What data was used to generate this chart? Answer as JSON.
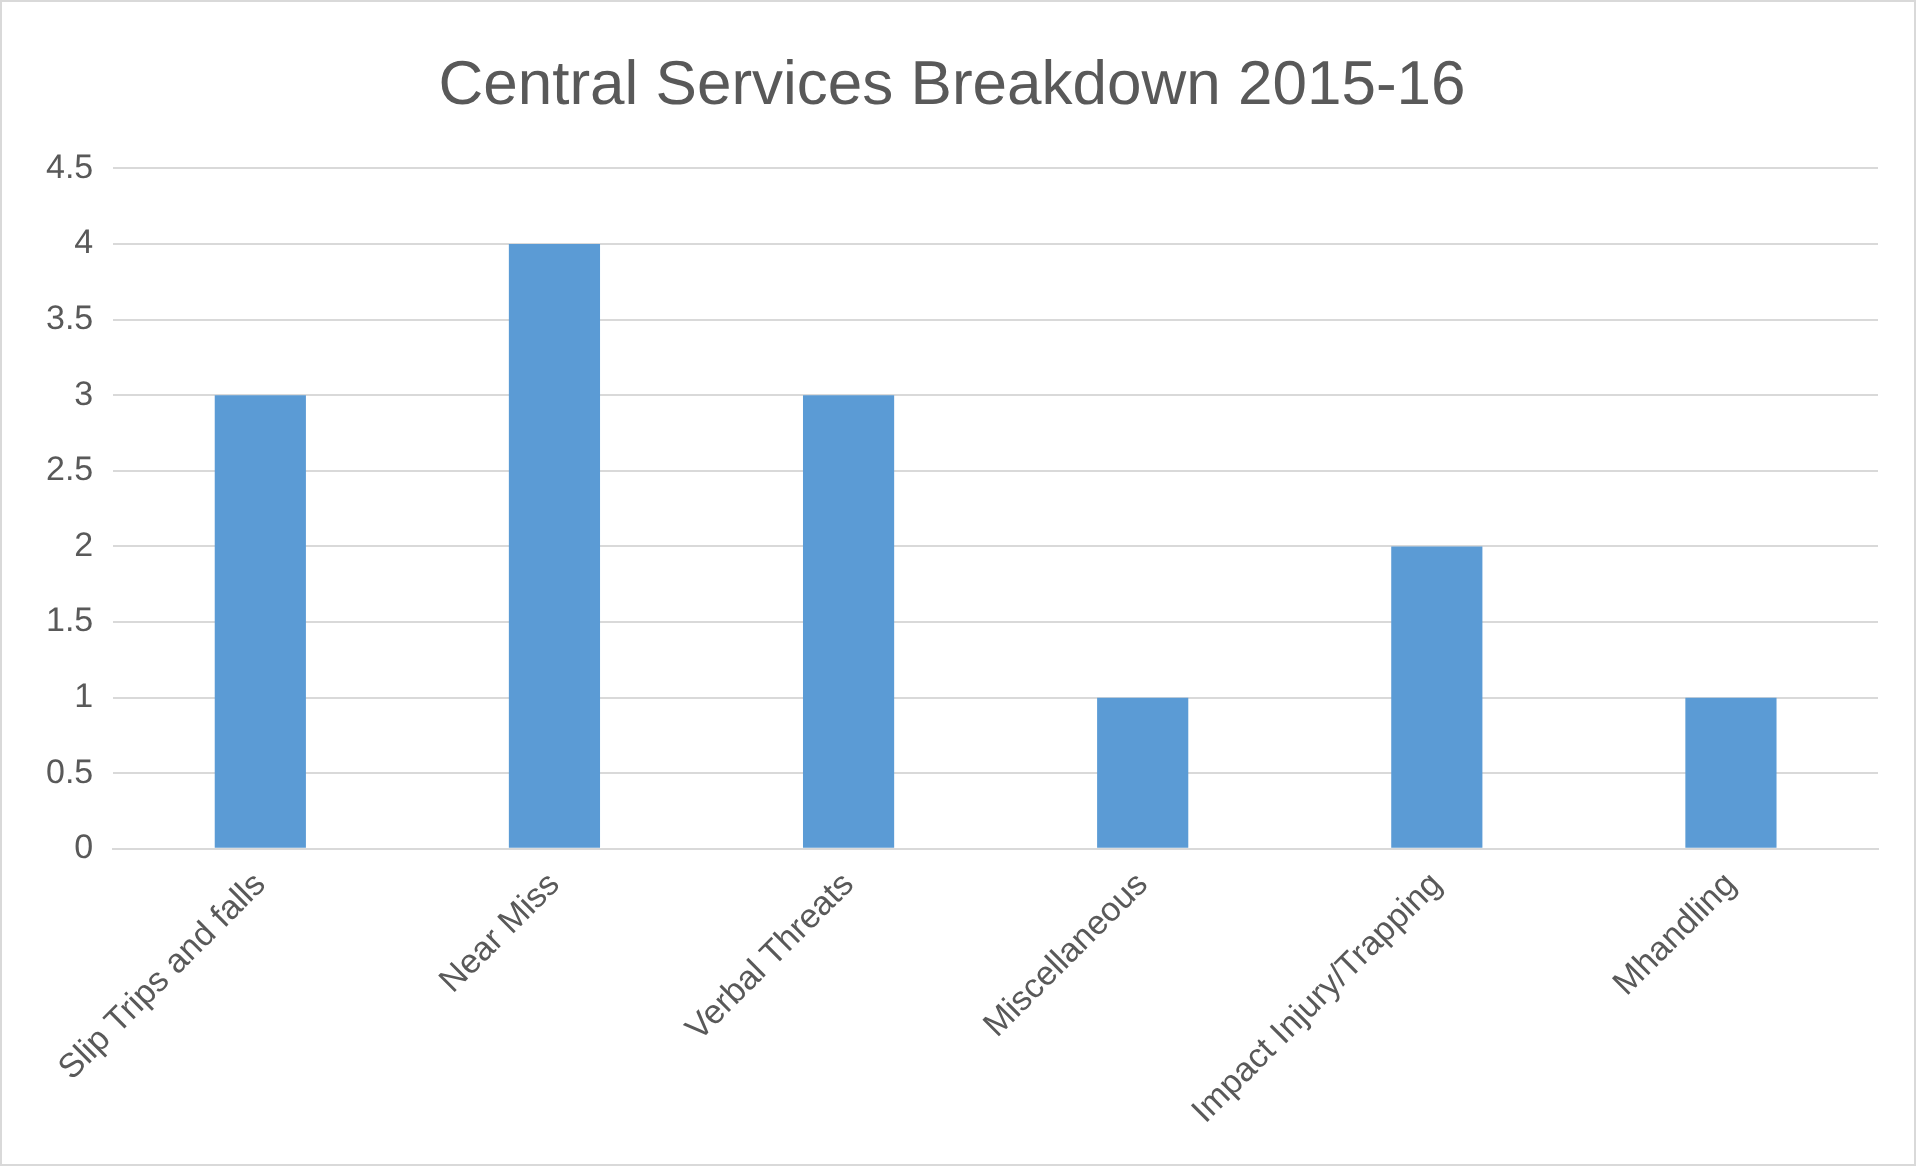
{
  "chart_data": {
    "type": "bar",
    "title": "Central Services Breakdown 2015-16",
    "categories": [
      "Slip Trips and falls",
      "Near Miss",
      "Verbal Threats",
      "Miscellaneous",
      "Impact Injury/Trapping",
      "Mhandling"
    ],
    "values": [
      3,
      4,
      3,
      1,
      2,
      1
    ],
    "color": "#5b9bd5",
    "ylim": [
      0,
      4.5
    ],
    "yticks": [
      0,
      0.5,
      1,
      1.5,
      2,
      2.5,
      3,
      3.5,
      4,
      4.5
    ],
    "grid": "y",
    "legend": false
  }
}
